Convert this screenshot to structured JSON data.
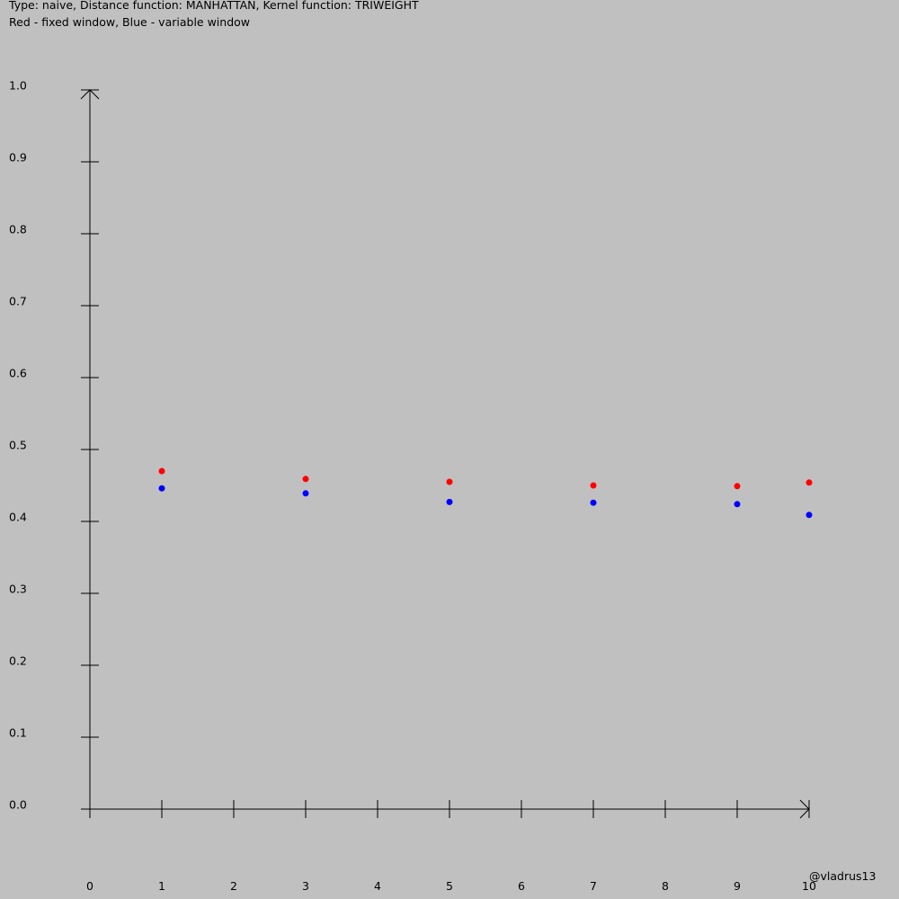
{
  "header": {
    "title": "Type: naive, Distance function: MANHATTAN, Kernel function: TRIWEIGHT",
    "subtitle": "Red - fixed window, Blue - variable window"
  },
  "watermark": "@vladrus13",
  "chart_data": {
    "type": "scatter",
    "title": "Type: naive, Distance function: MANHATTAN, Kernel function: TRIWEIGHT",
    "subtitle": "Red - fixed window, Blue - variable window",
    "xlabel": "",
    "ylabel": "",
    "xlim": [
      0,
      10
    ],
    "ylim": [
      0.0,
      1.0
    ],
    "x_ticks": [
      "0",
      "1",
      "2",
      "3",
      "4",
      "5",
      "6",
      "7",
      "8",
      "9",
      "10"
    ],
    "y_ticks": [
      "0.0",
      "0.1",
      "0.2",
      "0.3",
      "0.4",
      "0.5",
      "0.6",
      "0.7",
      "0.8",
      "0.9",
      "1.0"
    ],
    "grid": false,
    "series": [
      {
        "color": "#ff0000",
        "points": [
          {
            "x": 1,
            "y": 0.47
          },
          {
            "x": 3,
            "y": 0.459
          },
          {
            "x": 5,
            "y": 0.455
          },
          {
            "x": 7,
            "y": 0.45
          },
          {
            "x": 9,
            "y": 0.449
          },
          {
            "x": 10,
            "y": 0.454
          }
        ]
      },
      {
        "color": "#0000ff",
        "points": [
          {
            "x": 1,
            "y": 0.446
          },
          {
            "x": 3,
            "y": 0.439
          },
          {
            "x": 5,
            "y": 0.427
          },
          {
            "x": 7,
            "y": 0.426
          },
          {
            "x": 9,
            "y": 0.424
          },
          {
            "x": 10,
            "y": 0.409
          }
        ]
      }
    ]
  }
}
